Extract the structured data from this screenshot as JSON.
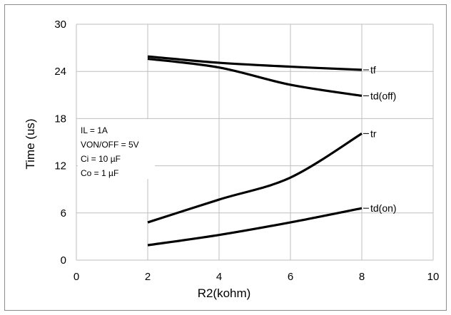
{
  "chart_data": {
    "type": "line",
    "title": "",
    "xlabel": "R2(kohm)",
    "ylabel": "Time (us)",
    "xlim": [
      0,
      10
    ],
    "ylim": [
      0,
      30
    ],
    "xticks": [
      0,
      2,
      4,
      6,
      8,
      10
    ],
    "yticks": [
      0,
      6,
      12,
      18,
      24,
      30
    ],
    "grid": true,
    "series": [
      {
        "name": "tf",
        "x": [
          2,
          4,
          6,
          8
        ],
        "y": [
          25.9,
          25.1,
          24.6,
          24.2
        ]
      },
      {
        "name": "td(off)",
        "x": [
          2,
          4,
          6,
          8
        ],
        "y": [
          25.6,
          24.5,
          22.3,
          20.9
        ]
      },
      {
        "name": "tr",
        "x": [
          2,
          4,
          6,
          8
        ],
        "y": [
          4.8,
          7.7,
          10.5,
          16.1
        ]
      },
      {
        "name": "td(on)",
        "x": [
          2,
          4,
          6,
          8
        ],
        "y": [
          1.9,
          3.2,
          4.8,
          6.6
        ]
      }
    ],
    "annotation": [
      "IL = 1A",
      "VON/OFF = 5V",
      "Ci = 10 µF",
      "Co = 1 µF"
    ]
  }
}
